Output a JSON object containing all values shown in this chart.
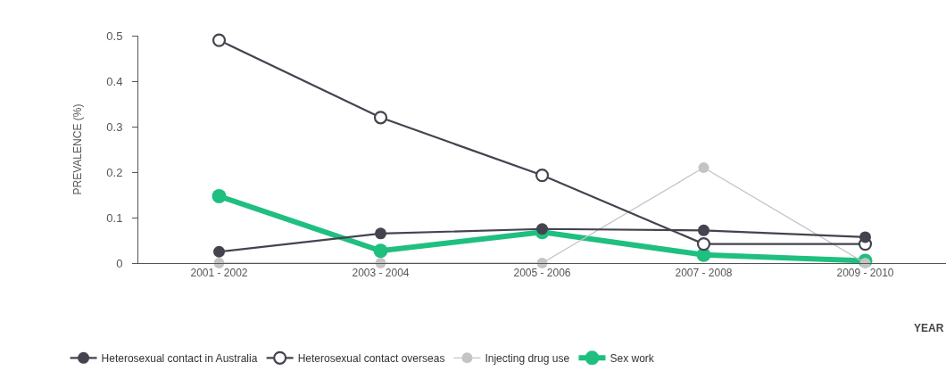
{
  "chart_data": {
    "type": "line",
    "ylabel": "PREVALENCE (%)",
    "xlabel": "YEAR",
    "categories": [
      "2001 - 2002",
      "2003 - 2004",
      "2005 - 2006",
      "2007 - 2008",
      "2009 - 2010"
    ],
    "series": [
      {
        "name": "Heterosexual contact in Australia",
        "color": "#45434f",
        "marker": "circle",
        "values": [
          0.025,
          0.065,
          0.075,
          0.072,
          0.057
        ]
      },
      {
        "name": "Heterosexual contact overseas",
        "color": "#45434f",
        "marker": "circle-open",
        "values": [
          0.49,
          0.32,
          0.193,
          0.042,
          0.042
        ]
      },
      {
        "name": "Injecting drug use",
        "color": "#c4c4c4",
        "marker": "circle",
        "values": [
          0,
          0,
          0,
          0.21,
          0
        ]
      },
      {
        "name": "Sex work",
        "color": "#1fbf80",
        "marker": "circle",
        "values": [
          0.147,
          0.027,
          0.068,
          0.018,
          0.005
        ]
      }
    ],
    "ylim": [
      0,
      0.5
    ],
    "yticks": [
      0,
      0.1,
      0.2,
      0.3,
      0.4,
      0.5
    ],
    "legend": "bottom left",
    "line_style": "solid"
  }
}
